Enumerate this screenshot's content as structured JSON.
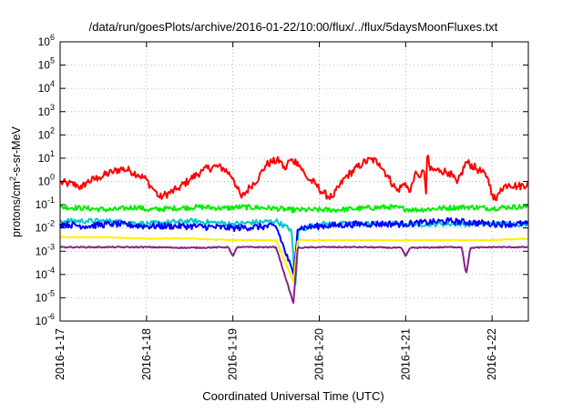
{
  "chart_data": {
    "type": "line",
    "title": "/data/run/goesPlots/archive/2016-01-22/10:00/flux/../flux/5daysMoonFluxes.txt",
    "xlabel": "Coordinated Universal Time (UTC)",
    "ylabel_parts": {
      "base": "protons/cm",
      "sup": "2",
      "rest": "-s-sr-MeV"
    },
    "y_scale": "log",
    "ylim_exponents": [
      -6,
      6
    ],
    "y_tick_exponents": [
      -6,
      -5,
      -4,
      -3,
      -2,
      -1,
      0,
      1,
      2,
      3,
      4,
      5,
      6
    ],
    "y_tick_base": "10",
    "x_range_days": [
      "2016-01-17",
      "2016-01-22 10:00"
    ],
    "x_ticks": [
      "2016-1-17",
      "2016-1-18",
      "2016-1-19",
      "2016-1-20",
      "2016-1-21",
      "2016-1-22"
    ],
    "grid": true,
    "legend": "none",
    "series": [
      {
        "color": "#ff0000",
        "points": [
          [
            0,
            0.9
          ],
          [
            0.1,
            0.8
          ],
          [
            0.2,
            0.7
          ],
          [
            0.25,
            0.5
          ],
          [
            0.3,
            0.9
          ],
          [
            0.45,
            1.5
          ],
          [
            0.6,
            2.5
          ],
          [
            0.7,
            3.5
          ],
          [
            0.8,
            3
          ],
          [
            0.9,
            2
          ],
          [
            1.0,
            1.2
          ],
          [
            1.05,
            0.6
          ],
          [
            1.1,
            0.4
          ],
          [
            1.15,
            0.2
          ],
          [
            1.2,
            0.25
          ],
          [
            1.35,
            0.45
          ],
          [
            1.5,
            1.2
          ],
          [
            1.65,
            3
          ],
          [
            1.8,
            4.5
          ],
          [
            1.9,
            3.5
          ],
          [
            2.0,
            1.5
          ],
          [
            2.05,
            0.5
          ],
          [
            2.1,
            0.2
          ],
          [
            2.2,
            0.6
          ],
          [
            2.3,
            1.5
          ],
          [
            2.38,
            5
          ],
          [
            2.45,
            7
          ],
          [
            2.55,
            8
          ],
          [
            2.6,
            3
          ],
          [
            2.65,
            8
          ],
          [
            2.75,
            7
          ],
          [
            2.85,
            1.5
          ],
          [
            2.95,
            0.8
          ],
          [
            3.05,
            0.3
          ],
          [
            3.15,
            0.2
          ],
          [
            3.3,
            1.5
          ],
          [
            3.5,
            6
          ],
          [
            3.6,
            9
          ],
          [
            3.7,
            6
          ],
          [
            3.8,
            1.5
          ],
          [
            3.9,
            0.4
          ],
          [
            4.0,
            0.9
          ],
          [
            4.05,
            0.3
          ],
          [
            4.1,
            2
          ],
          [
            4.15,
            1.5
          ],
          [
            4.2,
            3
          ],
          [
            4.22,
            1.5
          ],
          [
            4.24,
            0.2
          ],
          [
            4.25,
            30
          ],
          [
            4.28,
            3
          ],
          [
            4.4,
            3
          ],
          [
            4.5,
            2.5
          ],
          [
            4.6,
            0.8
          ],
          [
            4.7,
            7
          ],
          [
            4.85,
            3
          ],
          [
            4.95,
            1.5
          ],
          [
            5.0,
            0.3
          ],
          [
            5.05,
            0.15
          ],
          [
            5.1,
            0.5
          ],
          [
            5.2,
            0.8
          ],
          [
            5.3,
            0.6
          ],
          [
            5.42,
            0.8
          ]
        ]
      },
      {
        "color": "#00ee00",
        "points": [
          [
            0,
            0.08
          ],
          [
            0.3,
            0.07
          ],
          [
            0.6,
            0.06
          ],
          [
            0.9,
            0.08
          ],
          [
            1.0,
            0.06
          ],
          [
            1.3,
            0.07
          ],
          [
            1.6,
            0.08
          ],
          [
            1.9,
            0.07
          ],
          [
            2.1,
            0.08
          ],
          [
            2.5,
            0.07
          ],
          [
            2.65,
            0.06
          ],
          [
            2.9,
            0.06
          ],
          [
            3.2,
            0.06
          ],
          [
            3.5,
            0.07
          ],
          [
            3.8,
            0.08
          ],
          [
            4.1,
            0.06
          ],
          [
            4.4,
            0.07
          ],
          [
            4.7,
            0.08
          ],
          [
            5.0,
            0.07
          ],
          [
            5.2,
            0.08
          ],
          [
            5.42,
            0.08
          ]
        ]
      },
      {
        "color": "#00c8c8",
        "points": [
          [
            0,
            0.02
          ],
          [
            0.3,
            0.02
          ],
          [
            0.6,
            0.02
          ],
          [
            1.0,
            0.015
          ],
          [
            1.5,
            0.02
          ],
          [
            2.0,
            0.015
          ],
          [
            2.5,
            0.02
          ],
          [
            2.68,
            0.008
          ],
          [
            2.72,
            2e-05
          ],
          [
            2.76,
            0.008
          ],
          [
            3.0,
            0.015
          ],
          [
            3.5,
            0.015
          ],
          [
            4.0,
            0.015
          ],
          [
            4.5,
            0.015
          ],
          [
            5.0,
            0.015
          ],
          [
            5.42,
            0.015
          ]
        ]
      },
      {
        "color": "#0000ff",
        "points": [
          [
            0,
            0.015
          ],
          [
            0.3,
            0.012
          ],
          [
            0.6,
            0.015
          ],
          [
            1.0,
            0.012
          ],
          [
            1.5,
            0.012
          ],
          [
            2.0,
            0.01
          ],
          [
            2.5,
            0.012
          ],
          [
            2.7,
            0.0001
          ],
          [
            2.75,
            0.01
          ],
          [
            3.0,
            0.012
          ],
          [
            3.5,
            0.015
          ],
          [
            4.0,
            0.015
          ],
          [
            4.5,
            0.02
          ],
          [
            5.0,
            0.015
          ],
          [
            5.42,
            0.015
          ]
        ]
      },
      {
        "color": "#ffee00",
        "points": [
          [
            0,
            0.004
          ],
          [
            0.5,
            0.004
          ],
          [
            1.0,
            0.0035
          ],
          [
            1.5,
            0.0035
          ],
          [
            2.0,
            0.003
          ],
          [
            2.5,
            0.003
          ],
          [
            2.7,
            5e-05
          ],
          [
            2.75,
            0.003
          ],
          [
            3.0,
            0.003
          ],
          [
            3.5,
            0.003
          ],
          [
            4.0,
            0.003
          ],
          [
            4.5,
            0.003
          ],
          [
            5.0,
            0.003
          ],
          [
            5.42,
            0.0035
          ]
        ]
      },
      {
        "color": "#882288",
        "points": [
          [
            0,
            0.0015
          ],
          [
            0.5,
            0.0015
          ],
          [
            1.0,
            0.0015
          ],
          [
            1.5,
            0.0014
          ],
          [
            1.95,
            0.0015
          ],
          [
            2.0,
            0.0006
          ],
          [
            2.05,
            0.0015
          ],
          [
            2.5,
            0.0015
          ],
          [
            2.7,
            6e-06
          ],
          [
            2.75,
            0.0014
          ],
          [
            3.0,
            0.0015
          ],
          [
            3.5,
            0.0015
          ],
          [
            3.95,
            0.0014
          ],
          [
            4.0,
            0.0006
          ],
          [
            4.05,
            0.0014
          ],
          [
            4.5,
            0.0015
          ],
          [
            4.65,
            0.0015
          ],
          [
            4.7,
            0.0001
          ],
          [
            4.75,
            0.0014
          ],
          [
            5.0,
            0.0015
          ],
          [
            5.42,
            0.0015
          ]
        ]
      }
    ]
  }
}
